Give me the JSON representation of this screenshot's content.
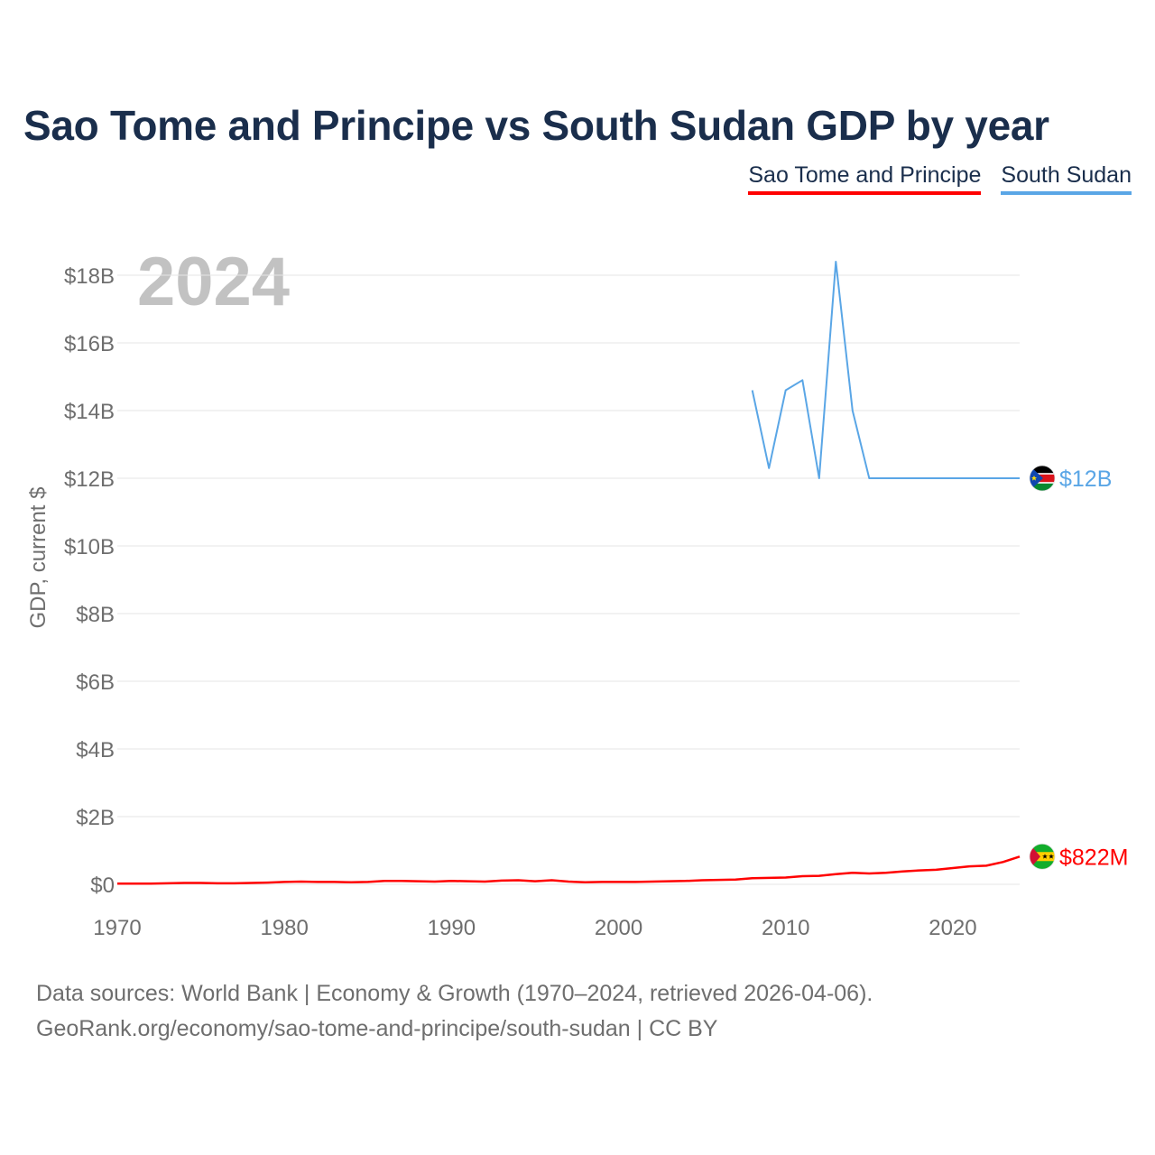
{
  "title": "Sao Tome and Principe vs South Sudan GDP by year",
  "legend": {
    "stp": "Sao Tome and Principe",
    "ss": "South Sudan"
  },
  "chart_data": {
    "type": "line",
    "title": "Sao Tome and Principe vs South Sudan GDP by year",
    "year_label": "2024",
    "xlabel": "",
    "ylabel": "GDP, current $",
    "xlim": [
      1970,
      2024
    ],
    "ylim": [
      0,
      18
    ],
    "y_unit": "billion current US$",
    "x_ticks": [
      1970,
      1980,
      1990,
      2000,
      2010,
      2020
    ],
    "y_ticks": [
      {
        "value": 0,
        "label": "$0"
      },
      {
        "value": 2,
        "label": "$2B"
      },
      {
        "value": 4,
        "label": "$4B"
      },
      {
        "value": 6,
        "label": "$6B"
      },
      {
        "value": 8,
        "label": "$8B"
      },
      {
        "value": 10,
        "label": "$10B"
      },
      {
        "value": 12,
        "label": "$12B"
      },
      {
        "value": 14,
        "label": "$14B"
      },
      {
        "value": 16,
        "label": "$16B"
      },
      {
        "value": 18,
        "label": "$18B"
      }
    ],
    "series": [
      {
        "name": "South Sudan",
        "key": "ss",
        "color": "#5aa6e6",
        "end_label": "$12B",
        "x": [
          2008,
          2009,
          2010,
          2011,
          2012,
          2013,
          2014,
          2015,
          2016,
          2017,
          2018,
          2019,
          2020,
          2021,
          2022,
          2023,
          2024
        ],
        "values": [
          14.6,
          12.3,
          14.6,
          14.9,
          12.0,
          18.4,
          14.0,
          12.0,
          12.0,
          12.0,
          12.0,
          12.0,
          12.0,
          12.0,
          12.0,
          12.0,
          12.0
        ]
      },
      {
        "name": "Sao Tome and Principe",
        "key": "stp",
        "color": "#ff0000",
        "end_label": "$822M",
        "x": [
          1970,
          1971,
          1972,
          1973,
          1974,
          1975,
          1976,
          1977,
          1978,
          1979,
          1980,
          1981,
          1982,
          1983,
          1984,
          1985,
          1986,
          1987,
          1988,
          1989,
          1990,
          1991,
          1992,
          1993,
          1994,
          1995,
          1996,
          1997,
          1998,
          1999,
          2000,
          2001,
          2002,
          2003,
          2004,
          2005,
          2006,
          2007,
          2008,
          2009,
          2010,
          2011,
          2012,
          2013,
          2014,
          2015,
          2016,
          2017,
          2018,
          2019,
          2020,
          2021,
          2022,
          2023,
          2024
        ],
        "values": [
          0.02,
          0.02,
          0.02,
          0.03,
          0.04,
          0.04,
          0.03,
          0.03,
          0.04,
          0.05,
          0.07,
          0.08,
          0.07,
          0.07,
          0.06,
          0.07,
          0.1,
          0.1,
          0.09,
          0.08,
          0.1,
          0.09,
          0.08,
          0.11,
          0.12,
          0.09,
          0.12,
          0.08,
          0.06,
          0.07,
          0.07,
          0.07,
          0.08,
          0.09,
          0.1,
          0.12,
          0.13,
          0.14,
          0.18,
          0.19,
          0.2,
          0.24,
          0.25,
          0.3,
          0.34,
          0.32,
          0.34,
          0.38,
          0.41,
          0.43,
          0.48,
          0.53,
          0.55,
          0.66,
          0.82
        ]
      }
    ]
  },
  "footer": {
    "line1": "Data sources: World Bank | Economy & Growth (1970–2024, retrieved 2026-04-06).",
    "line2": "GeoRank.org/economy/sao-tome-and-principe/south-sudan | CC BY"
  }
}
